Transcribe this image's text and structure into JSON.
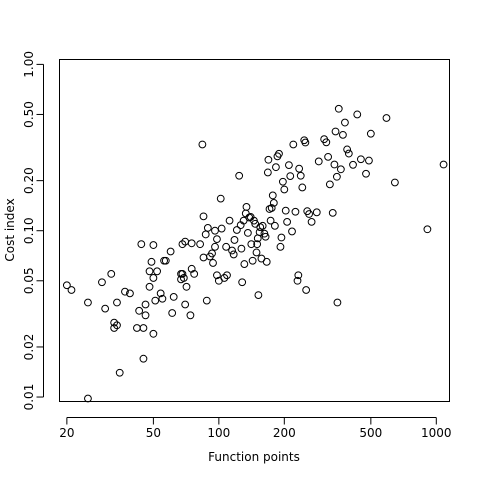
{
  "chart_data": {
    "type": "scatter",
    "xlabel": "Function points",
    "ylabel": "Cost index",
    "xscale": "log",
    "yscale": "log",
    "xlim": [
      18.5,
      1150
    ],
    "ylim": [
      0.0094,
      1.07
    ],
    "xticks": [
      {
        "value": 20,
        "label": "20"
      },
      {
        "value": 50,
        "label": "50"
      },
      {
        "value": 100,
        "label": "100"
      },
      {
        "value": 200,
        "label": "200"
      },
      {
        "value": 500,
        "label": "500"
      },
      {
        "value": 1000,
        "label": "1000"
      }
    ],
    "yticks": [
      {
        "value": 0.01,
        "label": "0.01"
      },
      {
        "value": 0.02,
        "label": "0.02"
      },
      {
        "value": 0.05,
        "label": "0.05"
      },
      {
        "value": 0.1,
        "label": "0.10"
      },
      {
        "value": 0.2,
        "label": "0.20"
      },
      {
        "value": 0.5,
        "label": "0.50"
      },
      {
        "value": 1.0,
        "label": "1.00"
      }
    ],
    "grid": false,
    "legend": "none",
    "points": [
      [
        20,
        0.047
      ],
      [
        21,
        0.044
      ],
      [
        25,
        0.0098
      ],
      [
        25,
        0.037
      ],
      [
        29,
        0.049
      ],
      [
        30,
        0.034
      ],
      [
        32,
        0.055
      ],
      [
        33,
        0.028
      ],
      [
        33,
        0.026
      ],
      [
        34,
        0.027
      ],
      [
        34,
        0.037
      ],
      [
        35,
        0.014
      ],
      [
        37,
        0.043
      ],
      [
        39,
        0.042
      ],
      [
        42,
        0.026
      ],
      [
        43,
        0.033
      ],
      [
        44,
        0.083
      ],
      [
        45,
        0.017
      ],
      [
        45,
        0.026
      ],
      [
        46,
        0.031
      ],
      [
        46,
        0.036
      ],
      [
        48,
        0.046
      ],
      [
        48,
        0.057
      ],
      [
        49,
        0.065
      ],
      [
        50,
        0.082
      ],
      [
        50,
        0.052
      ],
      [
        50,
        0.024
      ],
      [
        51,
        0.038
      ],
      [
        52,
        0.057
      ],
      [
        54,
        0.042
      ],
      [
        55,
        0.039
      ],
      [
        56,
        0.066
      ],
      [
        57,
        0.066
      ],
      [
        60,
        0.075
      ],
      [
        61,
        0.032
      ],
      [
        62,
        0.04
      ],
      [
        67,
        0.051
      ],
      [
        67,
        0.055
      ],
      [
        68,
        0.083
      ],
      [
        68,
        0.055
      ],
      [
        69,
        0.052
      ],
      [
        70,
        0.036
      ],
      [
        70,
        0.086
      ],
      [
        71,
        0.046
      ],
      [
        74,
        0.031
      ],
      [
        75,
        0.084
      ],
      [
        75,
        0.059
      ],
      [
        77,
        0.055
      ],
      [
        82,
        0.083
      ],
      [
        84,
        0.33
      ],
      [
        85,
        0.122
      ],
      [
        85,
        0.069
      ],
      [
        87,
        0.095
      ],
      [
        88,
        0.038
      ],
      [
        89,
        0.104
      ],
      [
        91,
        0.07
      ],
      [
        93,
        0.073
      ],
      [
        94,
        0.064
      ],
      [
        96,
        0.1
      ],
      [
        96,
        0.08
      ],
      [
        98,
        0.054
      ],
      [
        98,
        0.089
      ],
      [
        100,
        0.05
      ],
      [
        102,
        0.156
      ],
      [
        103,
        0.103
      ],
      [
        106,
        0.052
      ],
      [
        108,
        0.08
      ],
      [
        109,
        0.054
      ],
      [
        112,
        0.115
      ],
      [
        115,
        0.076
      ],
      [
        117,
        0.072
      ],
      [
        118,
        0.088
      ],
      [
        121,
        0.101
      ],
      [
        124,
        0.214
      ],
      [
        126,
        0.108
      ],
      [
        127,
        0.078
      ],
      [
        128,
        0.049
      ],
      [
        130,
        0.115
      ],
      [
        131,
        0.063
      ],
      [
        133,
        0.127
      ],
      [
        134,
        0.139
      ],
      [
        136,
        0.097
      ],
      [
        138,
        0.12
      ],
      [
        140,
        0.121
      ],
      [
        141,
        0.083
      ],
      [
        143,
        0.066
      ],
      [
        145,
        0.115
      ],
      [
        147,
        0.11
      ],
      [
        149,
        0.074
      ],
      [
        150,
        0.083
      ],
      [
        151,
        0.09
      ],
      [
        152,
        0.041
      ],
      [
        154,
        0.098
      ],
      [
        155,
        0.105
      ],
      [
        157,
        0.068
      ],
      [
        159,
        0.107
      ],
      [
        162,
        0.096
      ],
      [
        164,
        0.092
      ],
      [
        166,
        0.065
      ],
      [
        168,
        0.224
      ],
      [
        169,
        0.267
      ],
      [
        171,
        0.135
      ],
      [
        173,
        0.115
      ],
      [
        175,
        0.137
      ],
      [
        177,
        0.163
      ],
      [
        179,
        0.147
      ],
      [
        181,
        0.107
      ],
      [
        183,
        0.241
      ],
      [
        186,
        0.28
      ],
      [
        189,
        0.29
      ],
      [
        192,
        0.08
      ],
      [
        194,
        0.091
      ],
      [
        197,
        0.197
      ],
      [
        200,
        0.177
      ],
      [
        203,
        0.132
      ],
      [
        206,
        0.113
      ],
      [
        210,
        0.248
      ],
      [
        213,
        0.213
      ],
      [
        217,
        0.099
      ],
      [
        220,
        0.33
      ],
      [
        225,
        0.13
      ],
      [
        230,
        0.05
      ],
      [
        232,
        0.054
      ],
      [
        234,
        0.236
      ],
      [
        238,
        0.214
      ],
      [
        242,
        0.182
      ],
      [
        247,
        0.35
      ],
      [
        250,
        0.339
      ],
      [
        252,
        0.044
      ],
      [
        255,
        0.131
      ],
      [
        260,
        0.126
      ],
      [
        267,
        0.113
      ],
      [
        282,
        0.129
      ],
      [
        288,
        0.261
      ],
      [
        305,
        0.355
      ],
      [
        312,
        0.34
      ],
      [
        318,
        0.278
      ],
      [
        324,
        0.19
      ],
      [
        334,
        0.128
      ],
      [
        340,
        0.25
      ],
      [
        344,
        0.395
      ],
      [
        349,
        0.211
      ],
      [
        351,
        0.037
      ],
      [
        356,
        0.541
      ],
      [
        364,
        0.234
      ],
      [
        372,
        0.377
      ],
      [
        380,
        0.447
      ],
      [
        389,
        0.308
      ],
      [
        396,
        0.291
      ],
      [
        414,
        0.249
      ],
      [
        433,
        0.5
      ],
      [
        450,
        0.269
      ],
      [
        475,
        0.22
      ],
      [
        490,
        0.264
      ],
      [
        500,
        0.383
      ],
      [
        590,
        0.476
      ],
      [
        645,
        0.195
      ],
      [
        910,
        0.102
      ],
      [
        1080,
        0.25
      ]
    ]
  }
}
